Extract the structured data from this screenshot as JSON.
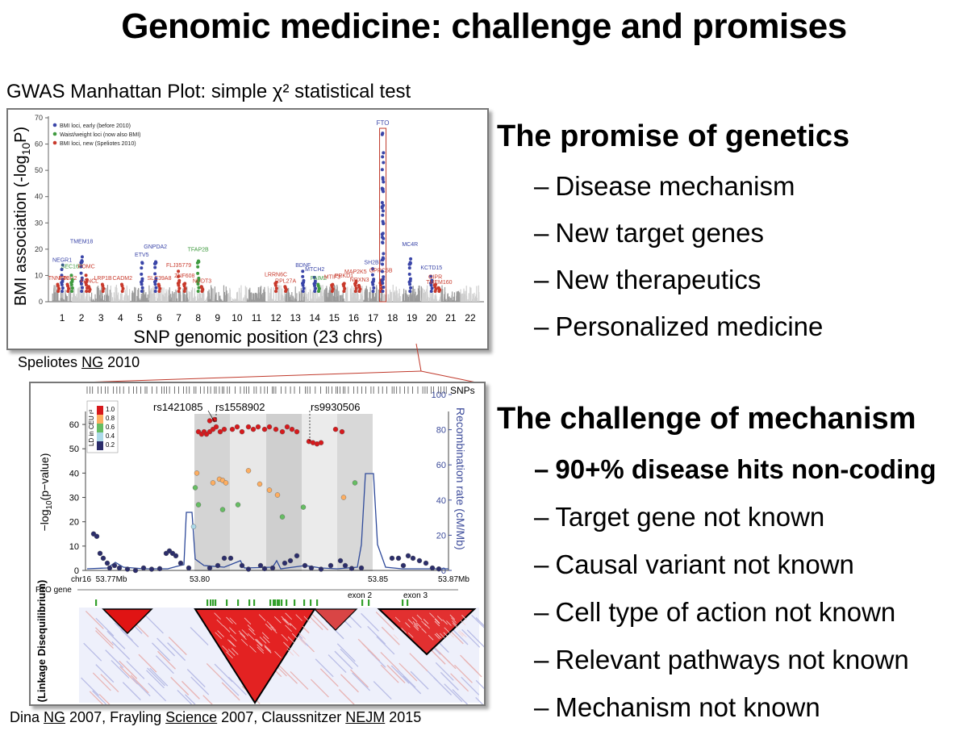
{
  "title": "Genomic medicine: challenge and promises",
  "manhattan": {
    "caption": "GWAS Manhattan Plot: simple χ² statistical test",
    "ylabel": "BMI association (-log10P)",
    "xlabel": "SNP genomic position (23 chrs)",
    "legend": [
      {
        "label": "BMI loci, early (before 2010)",
        "color": "#3a45a8"
      },
      {
        "label": "Waist/weight loci (now also BMI)",
        "color": "#3f9a3f"
      },
      {
        "label": "BMI loci, new (Speliotes 2010)",
        "color": "#c8392b"
      }
    ],
    "y_ticks": [
      "0",
      "10",
      "20",
      "30",
      "40",
      "50",
      "60",
      "70"
    ],
    "chromosomes": [
      "1",
      "2",
      "3",
      "4",
      "5",
      "6",
      "7",
      "8",
      "9",
      "10",
      "11",
      "12",
      "13",
      "14",
      "15",
      "16",
      "17",
      "18",
      "19",
      "20",
      "21",
      "22"
    ],
    "genes": [
      {
        "name": "NEGR1",
        "x": 1.0,
        "y": 14,
        "c": "b"
      },
      {
        "name": "TNNI3K",
        "x": 0.8,
        "y": 7,
        "c": "r"
      },
      {
        "name": "PTBP2",
        "x": 1.3,
        "y": 7,
        "c": "r"
      },
      {
        "name": "SEC16B",
        "x": 1.5,
        "y": 11.5,
        "c": "g"
      },
      {
        "name": "TMEM18",
        "x": 2.0,
        "y": 21,
        "c": "b"
      },
      {
        "name": "POMC",
        "x": 2.25,
        "y": 11.5,
        "c": "r"
      },
      {
        "name": "FANCL",
        "x": 2.4,
        "y": 6,
        "c": "r"
      },
      {
        "name": "LRP1B",
        "x": 3.1,
        "y": 7,
        "c": "r"
      },
      {
        "name": "CADM2",
        "x": 4.1,
        "y": 7,
        "c": "r"
      },
      {
        "name": "ETV5",
        "x": 5.1,
        "y": 16,
        "c": "b"
      },
      {
        "name": "GNPDA2",
        "x": 5.8,
        "y": 19,
        "c": "b"
      },
      {
        "name": "SLC39A8",
        "x": 6.0,
        "y": 7,
        "c": "r"
      },
      {
        "name": "FLJ35779",
        "x": 7.0,
        "y": 12,
        "c": "r"
      },
      {
        "name": "ZNF608",
        "x": 7.3,
        "y": 8,
        "c": "r"
      },
      {
        "name": "TFAP2B",
        "x": 8.0,
        "y": 18,
        "c": "g"
      },
      {
        "name": "NUDT3",
        "x": 8.2,
        "y": 6,
        "c": "r"
      },
      {
        "name": "LRRN6C",
        "x": 12.0,
        "y": 8.5,
        "c": "r"
      },
      {
        "name": "RPL27A",
        "x": 12.5,
        "y": 6,
        "c": "r"
      },
      {
        "name": "BDNF",
        "x": 13.4,
        "y": 12,
        "c": "b"
      },
      {
        "name": "MTCH2",
        "x": 14.0,
        "y": 10.5,
        "c": "b"
      },
      {
        "name": "FAIM2",
        "x": 14.2,
        "y": 7,
        "c": "g"
      },
      {
        "name": "MTIF3",
        "x": 14.9,
        "y": 7.5,
        "c": "r"
      },
      {
        "name": "PRKD1",
        "x": 15.5,
        "y": 8,
        "c": "r"
      },
      {
        "name": "MAP2K5",
        "x": 16.1,
        "y": 9.5,
        "c": "r"
      },
      {
        "name": "NRXN3",
        "x": 16.3,
        "y": 6.5,
        "c": "r"
      },
      {
        "name": "SH2B1",
        "x": 17.0,
        "y": 13,
        "c": "b"
      },
      {
        "name": "GPRC5B",
        "x": 17.4,
        "y": 10,
        "c": "r"
      },
      {
        "name": "FTO",
        "x": 17.5,
        "y": 66,
        "c": "b"
      },
      {
        "name": "MC4R",
        "x": 18.9,
        "y": 20,
        "c": "b"
      },
      {
        "name": "KCTD15",
        "x": 20.0,
        "y": 11,
        "c": "b"
      },
      {
        "name": "GIPR",
        "x": 20.2,
        "y": 7.5,
        "c": "r"
      },
      {
        "name": "TMEM160",
        "x": 20.4,
        "y": 5.5,
        "c": "r"
      }
    ]
  },
  "speliotes_cite": {
    "author": "Speliotes ",
    "journal": "NG",
    "year": " 2010"
  },
  "locus": {
    "snps_label": "SNPs",
    "ylabel": "−log10(p−value)",
    "y2label": "Recombination rate (cM/Mb)",
    "y_ticks": [
      "0",
      "10",
      "20",
      "30",
      "40",
      "50",
      "60"
    ],
    "y2_ticks": [
      "0",
      "20",
      "40",
      "60",
      "80",
      "100"
    ],
    "x_ticks": [
      "chr16  53.77Mb",
      "53.80",
      "53.85",
      "53.87Mb"
    ],
    "ld_legend_title": "LD in CEU r²",
    "ld_legend": [
      {
        "label": "1.0",
        "color": "#d7191c"
      },
      {
        "label": "0.8",
        "color": "#fdae61"
      },
      {
        "label": "0.6",
        "color": "#66bd63"
      },
      {
        "label": "0.4",
        "color": "#abd9e9"
      },
      {
        "label": "0.2",
        "color": "#2b2d6b"
      }
    ],
    "rs_labels": [
      "rs1421085",
      "rs1558902",
      "rs9930506"
    ],
    "gene_label": "FTO gene",
    "exon_labels": [
      "exon 2",
      "exon 3"
    ],
    "ld_side_label": "LD (Linkage Disequilibrium)"
  },
  "bottom_cite": [
    {
      "t": "Dina ",
      "u": false
    },
    {
      "t": "NG",
      "u": true
    },
    {
      "t": " 2007, Frayling ",
      "u": false
    },
    {
      "t": "Science",
      "u": true
    },
    {
      "t": " 2007, Claussnitzer ",
      "u": false
    },
    {
      "t": "NEJM",
      "u": true
    },
    {
      "t": " 2015",
      "u": false
    }
  ],
  "promise": {
    "heading": "The promise of genetics",
    "items": [
      "Disease mechanism",
      "New target genes",
      "New therapeutics",
      "Personalized medicine"
    ]
  },
  "challenge": {
    "heading": "The challenge of mechanism",
    "items": [
      "90+% disease hits non-coding",
      "Target gene not known",
      "Causal variant not known",
      "Cell type of action not known",
      "Relevant pathways not known",
      "Mechanism not known"
    ],
    "bold_index": 0
  },
  "dash": "–"
}
